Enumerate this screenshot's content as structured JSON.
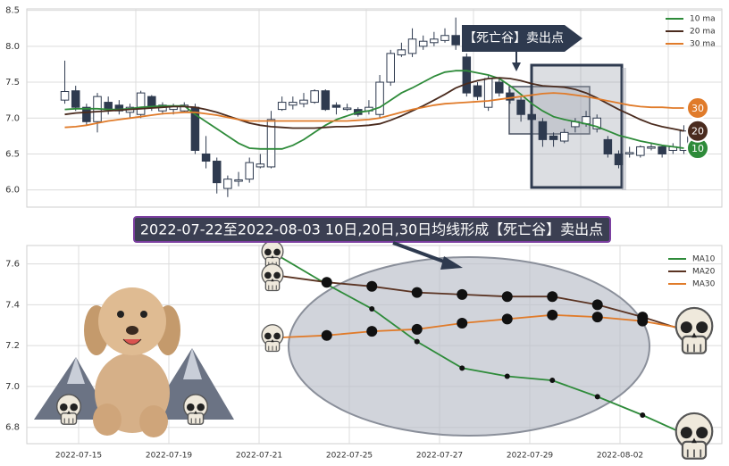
{
  "chart_data": [
    {
      "type": "candlestick",
      "open": [
        7.25,
        7.38,
        7.15,
        6.95,
        7.22,
        7.18,
        7.08,
        7.05,
        7.3,
        7.1,
        7.12,
        7.1,
        7.15,
        6.5,
        6.4,
        6.02,
        6.12,
        6.15,
        6.32,
        6.32,
        7.12,
        7.18,
        7.2,
        7.22,
        7.38,
        7.18,
        7.12,
        7.12,
        7.1,
        7.05,
        7.5,
        7.88,
        7.9,
        8.0,
        8.05,
        8.08,
        8.15,
        7.85,
        7.45,
        7.15,
        7.5,
        7.35,
        7.25,
        7.05,
        6.95,
        6.75,
        6.68,
        6.88,
        6.92,
        6.85,
        6.7,
        6.5,
        6.5,
        6.48,
        6.58,
        6.6,
        6.55,
        6.55
      ],
      "high": [
        7.8,
        7.45,
        7.2,
        7.35,
        7.3,
        7.25,
        7.2,
        7.38,
        7.32,
        7.22,
        7.2,
        7.22,
        7.2,
        6.75,
        6.45,
        6.2,
        6.25,
        6.45,
        6.5,
        7.1,
        7.3,
        7.3,
        7.35,
        7.4,
        7.4,
        7.22,
        7.2,
        7.15,
        7.25,
        7.6,
        7.95,
        8.05,
        8.25,
        8.15,
        8.2,
        8.25,
        8.4,
        7.9,
        7.5,
        7.6,
        7.55,
        7.4,
        7.3,
        7.1,
        7.0,
        6.8,
        6.85,
        7.0,
        7.1,
        7.05,
        6.75,
        6.55,
        6.6,
        6.62,
        6.65,
        6.62,
        6.65,
        6.9
      ],
      "low": [
        7.2,
        7.1,
        6.9,
        6.8,
        7.05,
        7.05,
        7.0,
        7.0,
        7.1,
        7.05,
        7.05,
        7.08,
        6.5,
        6.3,
        5.95,
        5.9,
        6.05,
        6.1,
        6.3,
        6.3,
        7.1,
        7.12,
        7.15,
        7.2,
        7.1,
        7.05,
        7.1,
        7.02,
        7.05,
        7.0,
        7.45,
        7.85,
        7.85,
        7.95,
        8.0,
        8.05,
        7.95,
        7.3,
        7.25,
        7.1,
        7.3,
        7.2,
        6.95,
        6.9,
        6.6,
        6.6,
        6.65,
        6.8,
        6.88,
        6.8,
        6.45,
        6.3,
        6.45,
        6.45,
        6.55,
        6.45,
        6.5,
        6.5
      ],
      "close": [
        7.37,
        7.15,
        6.95,
        7.3,
        7.12,
        7.1,
        7.15,
        7.35,
        7.15,
        7.18,
        7.16,
        7.18,
        6.55,
        6.4,
        6.1,
        6.15,
        6.14,
        6.38,
        6.36,
        6.98,
        7.22,
        7.22,
        7.25,
        7.38,
        7.12,
        7.15,
        7.14,
        7.05,
        7.15,
        7.5,
        7.9,
        7.95,
        8.1,
        8.07,
        8.1,
        8.15,
        8.02,
        7.35,
        7.3,
        7.55,
        7.35,
        7.25,
        7.05,
        6.98,
        6.7,
        6.7,
        6.8,
        6.95,
        7.02,
        7.0,
        6.5,
        6.35,
        6.52,
        6.6,
        6.6,
        6.5,
        6.6,
        6.82
      ],
      "up_color": "#ffffff",
      "down_color": "#2e3a4f",
      "series": [
        {
          "name": "10 ma",
          "color": "#2e8b3a",
          "end_label": "10",
          "values": [
            7.12,
            7.13,
            7.13,
            7.13,
            7.12,
            7.12,
            7.13,
            7.15,
            7.16,
            7.17,
            7.17,
            7.17,
            7.05,
            6.95,
            6.85,
            6.75,
            6.65,
            6.58,
            6.57,
            6.57,
            6.57,
            6.62,
            6.7,
            6.8,
            6.9,
            6.98,
            7.03,
            7.08,
            7.1,
            7.15,
            7.25,
            7.35,
            7.42,
            7.5,
            7.58,
            7.64,
            7.66,
            7.66,
            7.63,
            7.6,
            7.55,
            7.45,
            7.33,
            7.2,
            7.1,
            7.02,
            6.98,
            6.95,
            6.92,
            6.88,
            6.82,
            6.76,
            6.72,
            6.68,
            6.65,
            6.62,
            6.6,
            6.58
          ]
        },
        {
          "name": "20 ma",
          "color": "#4a2b1e",
          "end_label": "20",
          "values": [
            7.05,
            7.07,
            7.08,
            7.09,
            7.1,
            7.11,
            7.12,
            7.13,
            7.14,
            7.15,
            7.16,
            7.16,
            7.15,
            7.12,
            7.08,
            7.03,
            6.98,
            6.93,
            6.9,
            6.88,
            6.87,
            6.86,
            6.86,
            6.86,
            6.87,
            6.88,
            6.88,
            6.89,
            6.9,
            6.92,
            6.97,
            7.03,
            7.1,
            7.17,
            7.25,
            7.33,
            7.42,
            7.48,
            7.52,
            7.55,
            7.56,
            7.55,
            7.52,
            7.48,
            7.45,
            7.44,
            7.43,
            7.4,
            7.35,
            7.28,
            7.2,
            7.12,
            7.05,
            6.98,
            6.92,
            6.88,
            6.85,
            6.82
          ]
        },
        {
          "name": "30 ma",
          "color": "#e07b2a",
          "end_label": "30",
          "values": [
            6.87,
            6.88,
            6.9,
            6.93,
            6.96,
            6.98,
            7.0,
            7.02,
            7.04,
            7.06,
            7.07,
            7.08,
            7.08,
            7.06,
            7.04,
            7.01,
            6.98,
            6.96,
            6.96,
            6.96,
            6.96,
            6.96,
            6.96,
            6.96,
            6.96,
            6.96,
            6.96,
            6.97,
            6.98,
            7.0,
            7.04,
            7.08,
            7.12,
            7.15,
            7.18,
            7.2,
            7.21,
            7.22,
            7.23,
            7.24,
            7.26,
            7.28,
            7.3,
            7.32,
            7.34,
            7.35,
            7.34,
            7.32,
            7.3,
            7.27,
            7.24,
            7.21,
            7.18,
            7.16,
            7.15,
            7.15,
            7.14,
            7.14
          ]
        }
      ],
      "annotation": "【死亡谷】卖出点",
      "ylim": [
        5.76,
        8.52
      ],
      "yticks": [
        {
          "value": 6,
          "label": "6.0"
        },
        6.5,
        {
          "value": 7,
          "label": "7.0"
        },
        7.5,
        {
          "value": 8,
          "label": "8.0"
        },
        8.5
      ],
      "grid": true,
      "legend": "upper right"
    },
    {
      "type": "line",
      "title": "2022-07-22至2022-08-03 10日,20日,30日均线形成【死亡谷】卖出点",
      "categories": [
        null,
        "2022-07-15",
        null,
        "2022-07-19",
        null,
        "2022-07-21",
        null,
        "2022-07-25",
        null,
        "2022-07-27",
        null,
        "2022-07-29",
        null,
        "2022-08-02",
        null
      ],
      "series": [
        {
          "name": "MA10",
          "color": "#2e8b3a",
          "marker_size": 3,
          "values": [
            null,
            null,
            null,
            null,
            null,
            7.63,
            7.5,
            7.38,
            7.22,
            7.09,
            7.05,
            7.03,
            6.95,
            6.86,
            6.76
          ]
        },
        {
          "name": "MA20",
          "color": "#5a3322",
          "marker_size": 6,
          "values": [
            null,
            null,
            null,
            null,
            null,
            7.54,
            7.51,
            7.49,
            7.46,
            7.45,
            7.44,
            7.44,
            7.4,
            7.34,
            7.27
          ]
        },
        {
          "name": "MA30",
          "color": "#e07b2a",
          "marker_size": 6,
          "values": [
            null,
            null,
            null,
            null,
            null,
            7.24,
            7.25,
            7.27,
            7.28,
            7.31,
            7.33,
            7.35,
            7.34,
            7.32,
            7.28
          ]
        }
      ],
      "ylim": [
        6.72,
        7.69
      ],
      "yticks": [
        6.8,
        {
          "value": 7,
          "label": "7.0"
        },
        7.2,
        7.4,
        7.6
      ],
      "grid": true,
      "legend": "upper right"
    }
  ]
}
